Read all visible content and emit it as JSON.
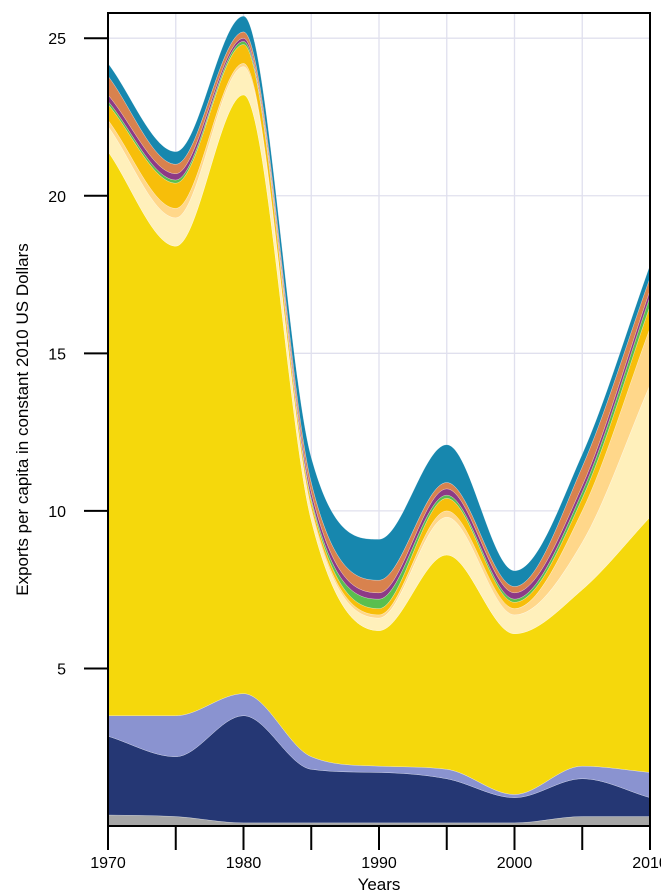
{
  "chart_data": {
    "type": "area",
    "stacked": true,
    "title": "",
    "xlabel": "Years",
    "ylabel": "Exports per capita in constant 2010 US Dollars",
    "x": [
      1970,
      1975,
      1980,
      1985,
      1990,
      1995,
      2000,
      2005,
      2010
    ],
    "xlim": [
      1970,
      2010
    ],
    "ylim": [
      0,
      25.8
    ],
    "x_ticks": [
      1970,
      1975,
      1980,
      1985,
      1990,
      1995,
      2000,
      2005,
      2010
    ],
    "x_tick_labels": [
      "1970",
      "",
      "1980",
      "",
      "1990",
      "",
      "2000",
      "",
      "2010"
    ],
    "y_ticks": [
      5,
      10,
      15,
      20,
      25
    ],
    "y_tick_labels": [
      "5",
      "10",
      "15",
      "20",
      "25"
    ],
    "grid": true,
    "legend": "none",
    "series": [
      {
        "color": "#a6a6a6",
        "values": [
          0.35,
          0.3,
          0.1,
          0.1,
          0.1,
          0.1,
          0.1,
          0.3,
          0.3
        ]
      },
      {
        "color": "#253774",
        "values": [
          2.5,
          1.9,
          3.4,
          1.7,
          1.6,
          1.4,
          0.8,
          1.2,
          0.6
        ]
      },
      {
        "color": "#8a93d0",
        "values": [
          0.65,
          1.3,
          0.7,
          0.4,
          0.2,
          0.3,
          0.1,
          0.4,
          0.8
        ]
      },
      {
        "color": "#f5d80c",
        "values": [
          17.9,
          14.9,
          19.0,
          7.5,
          4.3,
          6.8,
          5.1,
          5.6,
          8.1
        ]
      },
      {
        "color": "#fff0bb",
        "values": [
          0.8,
          0.9,
          0.9,
          0.3,
          0.4,
          1.2,
          0.6,
          1.5,
          4.2
        ]
      },
      {
        "color": "#ffd78a",
        "values": [
          0.2,
          0.3,
          0.1,
          0.1,
          0.1,
          0.2,
          0.2,
          1.0,
          1.8
        ]
      },
      {
        "color": "#f7be0a",
        "values": [
          0.5,
          0.8,
          0.6,
          0.2,
          0.2,
          0.4,
          0.2,
          0.4,
          0.7
        ]
      },
      {
        "color": "#5abf4f",
        "values": [
          0.1,
          0.1,
          0.1,
          0.1,
          0.3,
          0.1,
          0.1,
          0.2,
          0.3
        ]
      },
      {
        "color": "#8d3a86",
        "values": [
          0.2,
          0.2,
          0.1,
          0.2,
          0.2,
          0.2,
          0.2,
          0.2,
          0.2
        ]
      },
      {
        "color": "#d8824e",
        "values": [
          0.6,
          0.3,
          0.2,
          0.3,
          0.4,
          0.2,
          0.2,
          0.6,
          0.4
        ]
      },
      {
        "color": "#1787ae",
        "values": [
          0.4,
          0.4,
          0.5,
          0.8,
          1.3,
          1.2,
          0.5,
          0.4,
          0.4
        ]
      }
    ]
  }
}
